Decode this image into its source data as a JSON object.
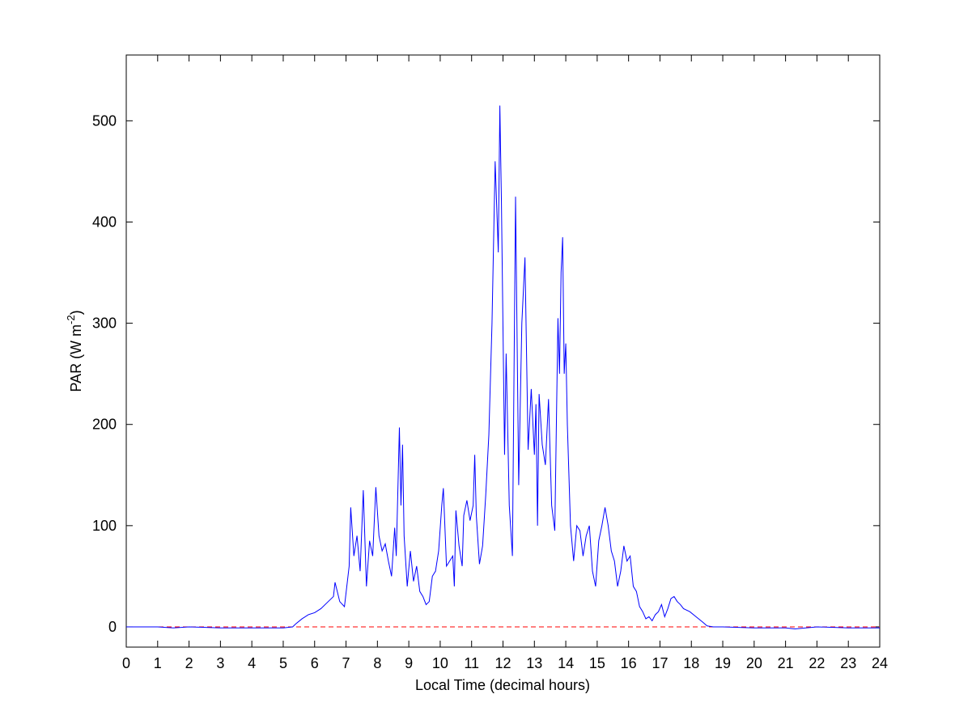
{
  "chart_data": {
    "type": "line",
    "xlabel": "Local Time (decimal hours)",
    "ylabel": {
      "text": "PAR (W m",
      "superscript": "-2",
      "suffix": ")"
    },
    "xlim": [
      0,
      24
    ],
    "ylim": [
      -20,
      565
    ],
    "xticks": [
      0,
      1,
      2,
      3,
      4,
      5,
      6,
      7,
      8,
      9,
      10,
      11,
      12,
      13,
      14,
      15,
      16,
      17,
      18,
      19,
      20,
      21,
      22,
      23,
      24
    ],
    "yticks": [
      0,
      100,
      200,
      300,
      400,
      500
    ],
    "hline": 0,
    "hline_color": "#ff0000",
    "series": [
      {
        "color": "#0000ff",
        "x": [
          0,
          1,
          1.5,
          2,
          3,
          4,
          5,
          5.3,
          5.4,
          5.6,
          5.8,
          6.0,
          6.2,
          6.4,
          6.6,
          6.65,
          6.8,
          6.95,
          7.1,
          7.15,
          7.25,
          7.35,
          7.45,
          7.55,
          7.65,
          7.75,
          7.85,
          7.95,
          8.05,
          8.15,
          8.25,
          8.35,
          8.45,
          8.55,
          8.6,
          8.7,
          8.75,
          8.8,
          8.85,
          8.95,
          9.05,
          9.15,
          9.25,
          9.35,
          9.45,
          9.55,
          9.65,
          9.75,
          9.85,
          9.95,
          10.05,
          10.1,
          10.2,
          10.3,
          10.4,
          10.45,
          10.5,
          10.6,
          10.7,
          10.75,
          10.85,
          10.95,
          11.05,
          11.1,
          11.15,
          11.25,
          11.35,
          11.45,
          11.55,
          11.65,
          11.75,
          11.85,
          11.9,
          11.95,
          12.05,
          12.1,
          12.2,
          12.3,
          12.4,
          12.5,
          12.6,
          12.7,
          12.8,
          12.9,
          13.0,
          13.05,
          13.1,
          13.15,
          13.25,
          13.35,
          13.45,
          13.55,
          13.65,
          13.7,
          13.75,
          13.8,
          13.85,
          13.9,
          13.95,
          14.0,
          14.05,
          14.15,
          14.25,
          14.35,
          14.45,
          14.55,
          14.65,
          14.75,
          14.85,
          14.95,
          15.05,
          15.15,
          15.25,
          15.35,
          15.45,
          15.55,
          15.65,
          15.75,
          15.85,
          15.95,
          16.05,
          16.15,
          16.25,
          16.35,
          16.45,
          16.55,
          16.65,
          16.75,
          16.85,
          16.95,
          17.05,
          17.15,
          17.25,
          17.35,
          17.45,
          17.55,
          17.65,
          17.75,
          17.95,
          18.15,
          18.35,
          18.5,
          18.7,
          19,
          20,
          21,
          21.3,
          22,
          23,
          24
        ],
        "values": [
          0,
          0,
          -1,
          0,
          -1,
          -1,
          -1,
          0,
          3,
          8,
          12,
          14,
          18,
          24,
          30,
          44,
          25,
          20,
          60,
          118,
          70,
          90,
          55,
          135,
          40,
          85,
          70,
          138,
          90,
          75,
          82,
          65,
          50,
          98,
          70,
          197,
          120,
          180,
          90,
          40,
          75,
          45,
          60,
          35,
          30,
          22,
          25,
          50,
          55,
          75,
          120,
          137,
          60,
          65,
          70,
          40,
          115,
          80,
          60,
          110,
          125,
          105,
          120,
          170,
          110,
          62,
          80,
          130,
          190,
          300,
          460,
          370,
          515,
          420,
          170,
          270,
          120,
          70,
          425,
          140,
          300,
          365,
          175,
          235,
          170,
          220,
          100,
          230,
          180,
          160,
          225,
          120,
          95,
          200,
          305,
          250,
          350,
          385,
          250,
          280,
          200,
          100,
          65,
          100,
          95,
          70,
          90,
          100,
          55,
          40,
          85,
          100,
          118,
          100,
          75,
          65,
          40,
          55,
          80,
          65,
          70,
          40,
          35,
          20,
          15,
          8,
          10,
          6,
          12,
          15,
          22,
          10,
          18,
          28,
          30,
          25,
          22,
          18,
          15,
          10,
          5,
          1,
          0,
          0,
          -1,
          -1,
          -2,
          0,
          -1,
          -1
        ]
      }
    ]
  }
}
